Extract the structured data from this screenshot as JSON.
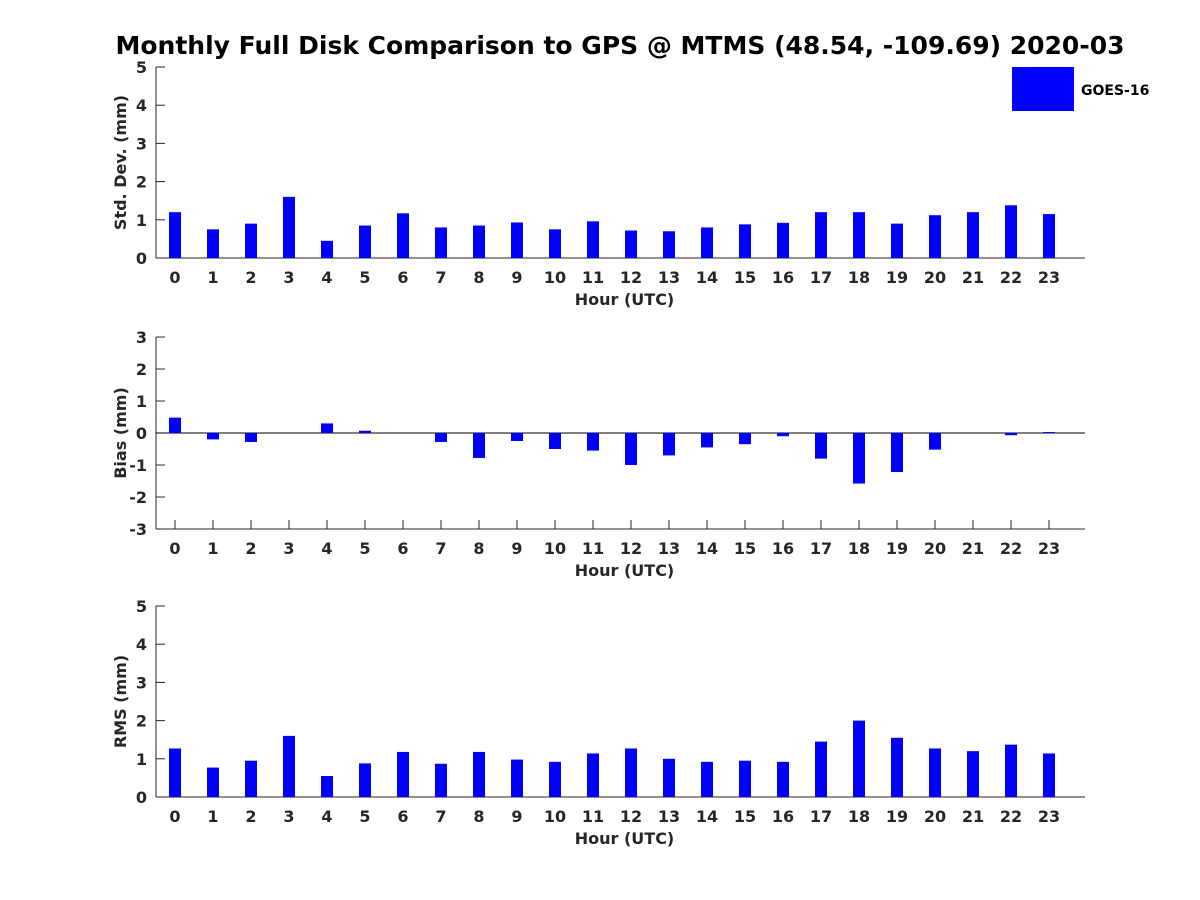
{
  "title": "Monthly Full Disk Comparison to GPS @ MTMS (48.54, -109.69) 2020-03",
  "legend": {
    "label": "GOES-16",
    "color": "#0000ff"
  },
  "chart_data": [
    {
      "type": "bar",
      "name": "std-dev",
      "xlabel": "Hour (UTC)",
      "ylabel": "Std. Dev. (mm)",
      "ylim": [
        0,
        5
      ],
      "yticks": [
        0,
        1,
        2,
        3,
        4,
        5
      ],
      "categories": [
        "0",
        "1",
        "2",
        "3",
        "4",
        "5",
        "6",
        "7",
        "8",
        "9",
        "10",
        "11",
        "12",
        "13",
        "14",
        "15",
        "16",
        "17",
        "18",
        "19",
        "20",
        "21",
        "22",
        "23"
      ],
      "series": [
        {
          "name": "GOES-16",
          "color": "#0000ff",
          "values": [
            1.2,
            0.75,
            0.9,
            1.6,
            0.45,
            0.85,
            1.17,
            0.8,
            0.85,
            0.93,
            0.75,
            0.96,
            0.72,
            0.7,
            0.8,
            0.88,
            0.92,
            1.2,
            1.2,
            0.9,
            1.12,
            1.2,
            1.38,
            1.15
          ]
        }
      ]
    },
    {
      "type": "bar",
      "name": "bias",
      "xlabel": "Hour (UTC)",
      "ylabel": "Bias (mm)",
      "ylim": [
        -3,
        3
      ],
      "yticks": [
        -3,
        -2,
        -1,
        0,
        1,
        2,
        3
      ],
      "zero_line": true,
      "categories": [
        "0",
        "1",
        "2",
        "3",
        "4",
        "5",
        "6",
        "7",
        "8",
        "9",
        "10",
        "11",
        "12",
        "13",
        "14",
        "15",
        "16",
        "17",
        "18",
        "19",
        "20",
        "21",
        "22",
        "23"
      ],
      "series": [
        {
          "name": "GOES-16",
          "color": "#0000ff",
          "values": [
            0.48,
            -0.2,
            -0.28,
            0.0,
            0.3,
            0.07,
            0.0,
            -0.28,
            -0.78,
            -0.25,
            -0.5,
            -0.55,
            -1.0,
            -0.7,
            -0.45,
            -0.35,
            -0.1,
            -0.8,
            -1.58,
            -1.22,
            -0.52,
            0.0,
            -0.07,
            0.03
          ]
        }
      ]
    },
    {
      "type": "bar",
      "name": "rms",
      "xlabel": "Hour (UTC)",
      "ylabel": "RMS (mm)",
      "ylim": [
        0,
        5
      ],
      "yticks": [
        0,
        1,
        2,
        3,
        4,
        5
      ],
      "categories": [
        "0",
        "1",
        "2",
        "3",
        "4",
        "5",
        "6",
        "7",
        "8",
        "9",
        "10",
        "11",
        "12",
        "13",
        "14",
        "15",
        "16",
        "17",
        "18",
        "19",
        "20",
        "21",
        "22",
        "23"
      ],
      "series": [
        {
          "name": "GOES-16",
          "color": "#0000ff",
          "values": [
            1.27,
            0.77,
            0.95,
            1.6,
            0.55,
            0.88,
            1.18,
            0.87,
            1.18,
            0.98,
            0.92,
            1.14,
            1.27,
            1.0,
            0.92,
            0.95,
            0.92,
            1.45,
            2.0,
            1.55,
            1.27,
            1.2,
            1.37,
            1.14
          ]
        }
      ]
    }
  ]
}
